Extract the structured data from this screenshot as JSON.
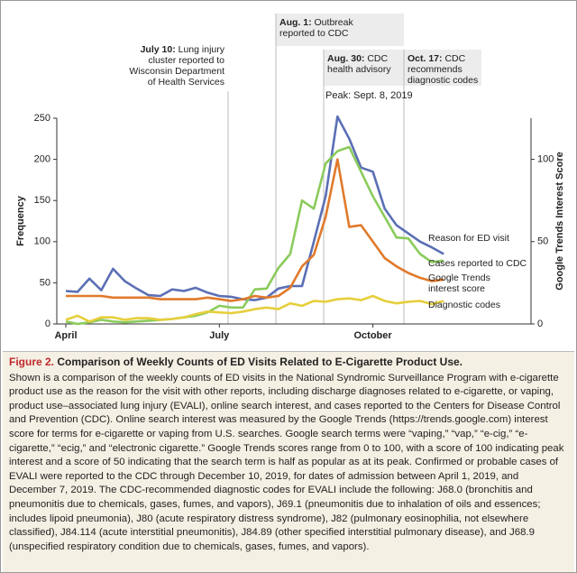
{
  "chart_data": {
    "type": "line",
    "y_label": "Frequency",
    "y2_label": "Google Trends Interest Score",
    "categories": [
      "April",
      null,
      null,
      null,
      null,
      null,
      null,
      null,
      null,
      null,
      null,
      null,
      null,
      "July",
      null,
      null,
      null,
      null,
      null,
      null,
      null,
      null,
      null,
      null,
      null,
      null,
      "October",
      null,
      null,
      null,
      null,
      null,
      null
    ],
    "ylim": [
      0,
      250
    ],
    "yticks": [
      0,
      50,
      100,
      150,
      200,
      250
    ],
    "y2lim": [
      0,
      125
    ],
    "y2ticks": [
      0,
      50,
      100
    ],
    "series": [
      {
        "name": "Reason for ED visit",
        "color": "#5b6fb5",
        "values": [
          40,
          39,
          55,
          41,
          67,
          52,
          43,
          35,
          34,
          42,
          40,
          44,
          38,
          34,
          33,
          30,
          29,
          32,
          43,
          46,
          46,
          100,
          155,
          252,
          225,
          190,
          185,
          140,
          120,
          110,
          100,
          93,
          85
        ]
      },
      {
        "name": "Cases reported to CDC",
        "color": "#8bcb5c",
        "values": [
          3,
          0,
          2,
          5,
          3,
          2,
          3,
          4,
          5,
          6,
          8,
          10,
          14,
          22,
          20,
          20,
          42,
          43,
          68,
          85,
          150,
          140,
          195,
          210,
          215,
          185,
          155,
          130,
          105,
          104,
          85,
          75,
          77
        ]
      },
      {
        "name": "Google Trends interest score",
        "color": "#e07a2c",
        "axis": "y2",
        "values": [
          17,
          17,
          17,
          17,
          16,
          16,
          16,
          16,
          15,
          15,
          15,
          15,
          16,
          15,
          14,
          15,
          17,
          16,
          17,
          22,
          35,
          42,
          65,
          100,
          59,
          60,
          50,
          40,
          35,
          31,
          28,
          26,
          27
        ]
      },
      {
        "name": "Diagnostic codes",
        "color": "#e6cf3c",
        "values": [
          5,
          10,
          3,
          8,
          8,
          5,
          7,
          7,
          5,
          6,
          8,
          12,
          15,
          14,
          13,
          15,
          18,
          20,
          18,
          25,
          22,
          28,
          27,
          30,
          31,
          29,
          34,
          28,
          25,
          27,
          28,
          24,
          28
        ]
      }
    ],
    "annotations": [
      {
        "date": "July 10:",
        "text": "Lung injury cluster reported to Wisconsin Department of Health Services"
      },
      {
        "date": "Aug. 1:",
        "text": "Outbreak reported to CDC"
      },
      {
        "date": "Aug. 30:",
        "text": "CDC health advisory"
      },
      {
        "date": "Oct. 17:",
        "text": "CDC recommends diagnostic codes"
      }
    ],
    "peak_label": "Peak: Sept. 8, 2019",
    "caption": {
      "figure": "Figure 2.",
      "title": "Comparison of Weekly Counts of ED Visits Related to E-Cigarette Product Use.",
      "text": "Shown is a comparison of the weekly counts of ED visits in the National Syndromic Surveillance Program with e-cigarette product use as the reason for the visit with other reports, including discharge diagnoses related to e-cigarette, or vaping, product use–associated lung injury (EVALI), online search interest, and cases reported to the Centers for Disease Control and Prevention (CDC). Online search interest was measured by the Google Trends (https://trends.google.com) interest score for terms for e-cigarette or vaping from U.S. searches. Google search terms were “vaping,” “vap,” “e-cig,” “e-cigarette,” “ecig,” and “electronic cigarette.” Google Trends scores range from 0 to 100, with a score of 100 indicating peak interest and a score of 50 indicating that the search term is half as popular as at its peak. Confirmed or probable cases of EVALI were reported to the CDC through December 10, 2019, for dates of admission between April 1, 2019, and December 7, 2019. The CDC-recommended diagnostic codes for EVALI include the following: J68.0 (bronchitis and pneumonitis due to chemicals, gases, fumes, and vapors), J69.1 (pneumonitis due to inhalation of oils and essences; includes lipoid pneumonia), J80 (acute respiratory distress syndrome), J82 (pulmonary eosinophilia, not elsewhere classified), J84.114 (acute interstitial pneumonitis), J84.89 (other specified interstitial pulmonary disease), and J68.9 (unspecified respiratory condition due to chemicals, gases, fumes, and vapors)."
    }
  }
}
